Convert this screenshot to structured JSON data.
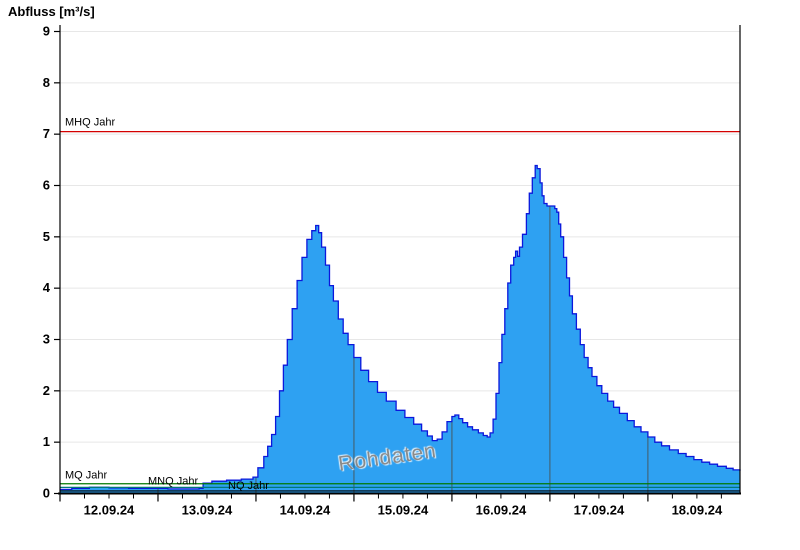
{
  "header": {
    "title": "Abfluss [m³/s]"
  },
  "watermark": "Rohdaten",
  "chart_data": {
    "type": "area",
    "title": "Abfluss [m³/s]",
    "xlabel": "",
    "ylabel": "Abfluss [m³/s]",
    "ylim": [
      0,
      9
    ],
    "x_domain_days": [
      0,
      6.94
    ],
    "grid": "horizontal light gray lines at each integer, no vertical grid over background",
    "y_tick_labels": [
      "0",
      "1",
      "2",
      "3",
      "4",
      "5",
      "6",
      "7",
      "8",
      "9"
    ],
    "x_tick_labels": [
      "12.09.24",
      "13.09.24",
      "14.09.24",
      "15.09.24",
      "16.09.24",
      "17.09.24",
      "18.09.24"
    ],
    "x_minor_ticks_per_day": 4,
    "day_boundary_lines_days": [
      1,
      2,
      3,
      4,
      5,
      6
    ],
    "day_boundary_line_color": "#455A64",
    "grid_color": "#e7e7e7",
    "reference_lines": [
      {
        "label": "MHQ Jahr",
        "value": 7.05,
        "color": "#d40000"
      },
      {
        "label": "MQ Jahr",
        "value": 0.19,
        "color": "#007a00"
      },
      {
        "label": "MNQ Jahr",
        "value": 0.12,
        "color": "#007878"
      },
      {
        "label": "NQ Jahr",
        "value": 0.05,
        "color": "#000000"
      }
    ],
    "series": [
      {
        "name": "Abfluss Rohdaten",
        "fill_color": "#2ea1f2",
        "line_color": "#0b17dc",
        "points_day_value": [
          [
            0,
            0.08
          ],
          [
            0.12,
            0.1
          ],
          [
            0.3,
            0.12
          ],
          [
            0.5,
            0.11
          ],
          [
            0.7,
            0.1
          ],
          [
            0.9,
            0.1
          ],
          [
            1.1,
            0.09
          ],
          [
            1.3,
            0.09
          ],
          [
            1.42,
            0.1
          ],
          [
            1.46,
            0.2
          ],
          [
            1.55,
            0.24
          ],
          [
            1.7,
            0.26
          ],
          [
            1.85,
            0.28
          ],
          [
            1.97,
            0.32
          ],
          [
            2.02,
            0.5
          ],
          [
            2.08,
            0.72
          ],
          [
            2.12,
            0.92
          ],
          [
            2.16,
            1.15
          ],
          [
            2.2,
            1.5
          ],
          [
            2.24,
            2.0
          ],
          [
            2.28,
            2.5
          ],
          [
            2.32,
            3.0
          ],
          [
            2.37,
            3.6
          ],
          [
            2.42,
            4.15
          ],
          [
            2.47,
            4.6
          ],
          [
            2.52,
            4.95
          ],
          [
            2.57,
            5.12
          ],
          [
            2.61,
            5.22
          ],
          [
            2.64,
            5.08
          ],
          [
            2.67,
            4.8
          ],
          [
            2.71,
            4.45
          ],
          [
            2.75,
            4.05
          ],
          [
            2.79,
            3.75
          ],
          [
            2.84,
            3.4
          ],
          [
            2.89,
            3.12
          ],
          [
            2.94,
            2.9
          ],
          [
            3.0,
            2.65
          ],
          [
            3.07,
            2.4
          ],
          [
            3.15,
            2.18
          ],
          [
            3.24,
            1.97
          ],
          [
            3.33,
            1.8
          ],
          [
            3.43,
            1.62
          ],
          [
            3.52,
            1.48
          ],
          [
            3.61,
            1.35
          ],
          [
            3.69,
            1.22
          ],
          [
            3.75,
            1.12
          ],
          [
            3.8,
            1.03
          ],
          [
            3.85,
            1.06
          ],
          [
            3.9,
            1.2
          ],
          [
            3.95,
            1.4
          ],
          [
            4.0,
            1.5
          ],
          [
            4.03,
            1.53
          ],
          [
            4.07,
            1.46
          ],
          [
            4.11,
            1.38
          ],
          [
            4.16,
            1.3
          ],
          [
            4.21,
            1.24
          ],
          [
            4.27,
            1.18
          ],
          [
            4.32,
            1.13
          ],
          [
            4.36,
            1.1
          ],
          [
            4.39,
            1.18
          ],
          [
            4.42,
            1.45
          ],
          [
            4.45,
            1.95
          ],
          [
            4.48,
            2.55
          ],
          [
            4.51,
            3.1
          ],
          [
            4.54,
            3.6
          ],
          [
            4.57,
            4.1
          ],
          [
            4.6,
            4.45
          ],
          [
            4.63,
            4.6
          ],
          [
            4.65,
            4.72
          ],
          [
            4.67,
            4.62
          ],
          [
            4.69,
            4.8
          ],
          [
            4.72,
            5.05
          ],
          [
            4.76,
            5.45
          ],
          [
            4.79,
            5.85
          ],
          [
            4.82,
            6.15
          ],
          [
            4.85,
            6.39
          ],
          [
            4.87,
            6.33
          ],
          [
            4.9,
            6.05
          ],
          [
            4.92,
            5.8
          ],
          [
            4.94,
            5.65
          ],
          [
            4.97,
            5.6
          ],
          [
            5.02,
            5.6
          ],
          [
            5.05,
            5.55
          ],
          [
            5.07,
            5.48
          ],
          [
            5.09,
            5.25
          ],
          [
            5.11,
            5.0
          ],
          [
            5.14,
            4.6
          ],
          [
            5.17,
            4.2
          ],
          [
            5.2,
            3.85
          ],
          [
            5.23,
            3.5
          ],
          [
            5.27,
            3.2
          ],
          [
            5.31,
            2.9
          ],
          [
            5.35,
            2.65
          ],
          [
            5.39,
            2.45
          ],
          [
            5.43,
            2.28
          ],
          [
            5.48,
            2.1
          ],
          [
            5.53,
            1.95
          ],
          [
            5.59,
            1.8
          ],
          [
            5.65,
            1.68
          ],
          [
            5.71,
            1.56
          ],
          [
            5.79,
            1.42
          ],
          [
            5.86,
            1.3
          ],
          [
            5.93,
            1.2
          ],
          [
            6.0,
            1.1
          ],
          [
            6.07,
            1.0
          ],
          [
            6.14,
            0.93
          ],
          [
            6.22,
            0.85
          ],
          [
            6.31,
            0.78
          ],
          [
            6.39,
            0.72
          ],
          [
            6.47,
            0.66
          ],
          [
            6.55,
            0.61
          ],
          [
            6.63,
            0.57
          ],
          [
            6.71,
            0.53
          ],
          [
            6.8,
            0.49
          ],
          [
            6.87,
            0.46
          ],
          [
            6.94,
            0.44
          ]
        ]
      }
    ],
    "annotations": [
      {
        "text": "Rohdaten",
        "style": "gray rotated watermark, center of lower plot"
      }
    ]
  }
}
